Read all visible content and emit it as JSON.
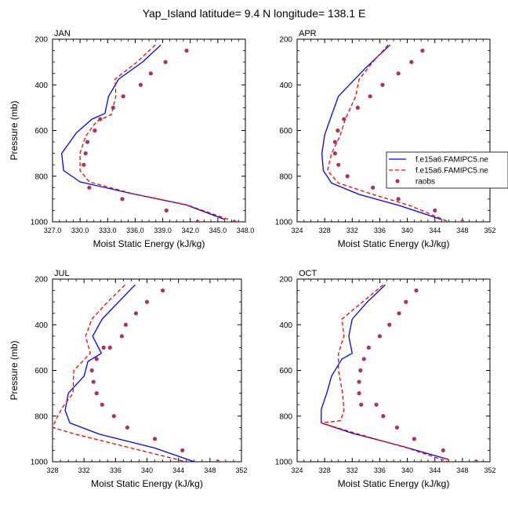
{
  "title": "Yap_Island  latitude= 9.4 N longitude= 138.1 E",
  "colors": {
    "model1": "#0000ff",
    "model2": "#ff0000",
    "raobs": "#b03060"
  },
  "legend": {
    "placement": "right of APR panel",
    "entries": [
      "f.e15a6.FAMIPC5.ne",
      "f.e15a6.FAMIPC5.ne",
      "raobs"
    ]
  },
  "chart_data": [
    {
      "type": "line",
      "panel": "JAN",
      "title": "JAN",
      "xlabel": "Moist Static Energy (kJ/kg)",
      "ylabel": "Pressure (mb)",
      "xlim": [
        327,
        348
      ],
      "xticks": [
        327,
        330,
        333,
        336,
        339,
        342,
        345,
        348
      ],
      "xticklabels": [
        "327.0",
        "330.0",
        "333.0",
        "336.0",
        "339.0",
        "342.0",
        "345.0",
        "348.0"
      ],
      "ylim": [
        200,
        1000
      ],
      "yticks": [
        200,
        400,
        600,
        800,
        1000
      ],
      "yticklabels": [
        "200",
        "400",
        "600",
        "800",
        "1000"
      ],
      "y_inverted": true,
      "series": [
        {
          "name": "f.e15a6.FAMIPC5.ne",
          "style": "solid",
          "color": "#0000ff",
          "x": [
            338.8,
            336.8,
            334.2,
            333.1,
            332.7,
            331.3,
            329.6,
            328.0,
            328.2,
            330.0,
            335.5,
            341.5,
            345.8
          ],
          "y": [
            225,
            300,
            375,
            450,
            525,
            550,
            610,
            700,
            775,
            825,
            875,
            925,
            990
          ]
        },
        {
          "name": "f.e15a6.FAMIPC5.ne",
          "style": "dashed",
          "color": "#ff0000",
          "x": [
            338.2,
            336.2,
            333.8,
            333.9,
            333.4,
            331.8,
            330.6,
            330.0,
            330.0,
            331.0,
            335.6,
            341.6,
            346.2
          ],
          "y": [
            225,
            300,
            375,
            450,
            530,
            560,
            625,
            700,
            775,
            825,
            875,
            925,
            990
          ]
        },
        {
          "name": "raobs",
          "style": "markers",
          "color": "#b03060",
          "x": [
            341.6,
            339.3,
            337.7,
            336.6,
            334.7,
            333.6,
            332.2,
            331.6,
            330.8,
            330.6,
            330.4,
            331.0,
            334.6,
            339.4,
            342.8,
            346.8
          ],
          "y": [
            250,
            300,
            350,
            400,
            450,
            500,
            550,
            600,
            650,
            700,
            750,
            850,
            900,
            950,
            1000,
            1000
          ]
        }
      ]
    },
    {
      "type": "line",
      "panel": "APR",
      "title": "APR",
      "xlabel": "Moist Static Energy (kJ/kg)",
      "ylabel": "",
      "xlim": [
        324,
        352
      ],
      "xticks": [
        324,
        328,
        332,
        336,
        340,
        344,
        348,
        352
      ],
      "xticklabels": [
        "324",
        "328",
        "332",
        "336",
        "340",
        "344",
        "348",
        "352"
      ],
      "ylim": [
        200,
        1000
      ],
      "yticks": [
        200,
        400,
        600,
        800,
        1000
      ],
      "yticklabels": [
        "200",
        "400",
        "600",
        "800",
        "1000"
      ],
      "y_inverted": true,
      "series": [
        {
          "name": "f.e15a6.FAMIPC5.ne",
          "style": "solid",
          "color": "#0000ff",
          "x": [
            337.5,
            333.8,
            330.0,
            328.8,
            328.0,
            327.6,
            327.8,
            329.0,
            333.0,
            339.0,
            345.0
          ],
          "y": [
            225,
            330,
            450,
            550,
            620,
            700,
            775,
            830,
            880,
            930,
            990
          ]
        },
        {
          "name": "f.e15a6.FAMIPC5.ne",
          "style": "dashed",
          "color": "#ff0000",
          "x": [
            337.2,
            335.0,
            333.0,
            332.5,
            331.0,
            330.2,
            329.0,
            328.4,
            330.0,
            334.5,
            340.5,
            346.0
          ],
          "y": [
            225,
            300,
            375,
            450,
            550,
            625,
            700,
            775,
            830,
            875,
            930,
            1000
          ]
        },
        {
          "name": "raobs",
          "style": "markers",
          "color": "#b03060",
          "x": [
            342.2,
            340.6,
            338.7,
            336.4,
            334.6,
            332.8,
            330.8,
            329.9,
            329.5,
            329.5,
            330.0,
            331.3,
            335.0,
            338.7,
            344.0,
            348.0
          ],
          "y": [
            250,
            300,
            350,
            400,
            450,
            500,
            550,
            600,
            650,
            700,
            750,
            800,
            850,
            900,
            950,
            1000
          ]
        }
      ]
    },
    {
      "type": "line",
      "panel": "JUL",
      "title": "JUL",
      "xlabel": "Moist Static Energy (kJ/kg)",
      "ylabel": "Pressure (mb)",
      "xlim": [
        328,
        352
      ],
      "xticks": [
        328,
        332,
        336,
        340,
        344,
        348,
        352
      ],
      "xticklabels": [
        "328",
        "332",
        "336",
        "340",
        "344",
        "348",
        "352"
      ],
      "ylim": [
        200,
        1000
      ],
      "yticks": [
        200,
        400,
        600,
        800,
        1000
      ],
      "yticklabels": [
        "200",
        "400",
        "600",
        "800",
        "1000"
      ],
      "y_inverted": true,
      "series": [
        {
          "name": "f.e15a6.FAMIPC5.ne",
          "style": "solid",
          "color": "#0000ff",
          "x": [
            338.5,
            336.4,
            334.3,
            333.1,
            334.2,
            332.5,
            332.0,
            330.0,
            329.6,
            330.2,
            334.0,
            341.0,
            346.0
          ],
          "y": [
            225,
            300,
            375,
            450,
            525,
            560,
            625,
            700,
            775,
            830,
            880,
            940,
            1000
          ]
        },
        {
          "name": "f.e15a6.FAMIPC5.ne",
          "style": "dashed",
          "color": "#ff0000",
          "x": [
            337.2,
            335.0,
            333.0,
            332.2,
            332.8,
            330.7,
            330.6,
            329.3,
            328.5,
            328.0,
            331.0,
            338.0,
            345.0
          ],
          "y": [
            225,
            300,
            375,
            450,
            525,
            600,
            700,
            760,
            810,
            850,
            880,
            940,
            1000
          ]
        },
        {
          "name": "raobs",
          "style": "markers",
          "color": "#b03060",
          "x": [
            342.0,
            340.0,
            338.6,
            337.3,
            336.8,
            335.3,
            334.5,
            333.6,
            333.0,
            333.2,
            333.6,
            334.3,
            335.8,
            337.5,
            341.0,
            344.5,
            349.0
          ],
          "y": [
            250,
            300,
            350,
            400,
            450,
            500,
            500,
            550,
            600,
            650,
            700,
            750,
            800,
            850,
            900,
            950,
            1000
          ]
        }
      ]
    },
    {
      "type": "line",
      "panel": "OCT",
      "title": "OCT",
      "xlabel": "Moist Static Energy (kJ/kg)",
      "ylabel": "",
      "xlim": [
        324,
        352
      ],
      "xticks": [
        324,
        328,
        332,
        336,
        340,
        344,
        348,
        352
      ],
      "xticklabels": [
        "324",
        "328",
        "332",
        "336",
        "340",
        "344",
        "348",
        "352"
      ],
      "ylim": [
        200,
        1000
      ],
      "yticks": [
        200,
        400,
        600,
        800,
        1000
      ],
      "yticklabels": [
        "200",
        "400",
        "600",
        "800",
        "1000"
      ],
      "y_inverted": true,
      "series": [
        {
          "name": "f.e15a6.FAMIPC5.ne",
          "style": "solid",
          "color": "#0000ff",
          "x": [
            336.8,
            334.2,
            332.0,
            331.5,
            332.0,
            330.5,
            329.0,
            328.3,
            327.5,
            327.5,
            332.0,
            339.0,
            346.0
          ],
          "y": [
            225,
            300,
            375,
            450,
            525,
            550,
            625,
            700,
            770,
            830,
            875,
            930,
            990
          ]
        },
        {
          "name": "f.e15a6.FAMIPC5.ne",
          "style": "dashed",
          "color": "#ff0000",
          "x": [
            336.5,
            333.5,
            330.5,
            330.8,
            330.0,
            330.0,
            330.6,
            330.8,
            330.3,
            327.5,
            333.0,
            340.0,
            346.0
          ],
          "y": [
            225,
            300,
            375,
            450,
            525,
            600,
            700,
            775,
            820,
            830,
            880,
            940,
            1000
          ]
        },
        {
          "name": "raobs",
          "style": "markers",
          "color": "#b03060",
          "x": [
            341.3,
            339.8,
            338.8,
            337.4,
            336.0,
            334.4,
            333.7,
            333.2,
            333.0,
            333.0,
            333.3,
            335.5,
            336.5,
            338.5,
            341.0,
            345.2,
            350.0
          ],
          "y": [
            250,
            300,
            350,
            400,
            450,
            500,
            550,
            600,
            650,
            700,
            750,
            750,
            800,
            850,
            900,
            950,
            1000
          ]
        }
      ]
    }
  ]
}
